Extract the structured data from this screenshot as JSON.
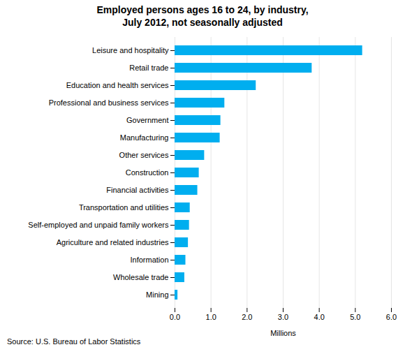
{
  "chart_data": {
    "type": "bar",
    "orientation": "horizontal",
    "title": "Employed persons ages 16 to 24, by industry,\nJuly 2012, not seasonally adjusted",
    "categories": [
      "Mining",
      "Wholesale trade",
      "Information",
      "Agriculture and related industries",
      "Self-employed and unpaid family workers",
      "Transportation and utilities",
      "Financial activities",
      "Construction",
      "Other services",
      "Manufacturing",
      "Government",
      "Professional and business services",
      "Education and health services",
      "Retail trade",
      "Leisure and hospitality"
    ],
    "values": [
      0.08,
      0.27,
      0.3,
      0.37,
      0.4,
      0.42,
      0.63,
      0.67,
      0.82,
      1.25,
      1.27,
      1.38,
      2.25,
      3.8,
      5.2
    ],
    "color": "#00AEEF",
    "xlabel": "Millions",
    "xlim": [
      0,
      6
    ],
    "xticks": [
      0,
      1,
      2,
      3,
      4,
      5,
      6
    ],
    "grid": true,
    "caption": "Source: U.S. Bureau of Labor Statistics"
  }
}
